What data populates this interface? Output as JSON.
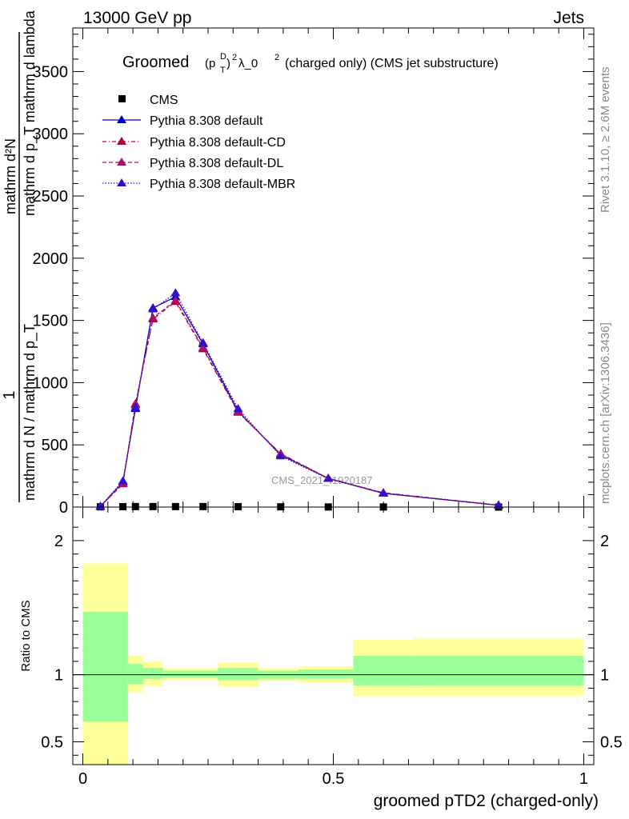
{
  "header": {
    "left": "13000 GeV pp",
    "right": "Jets"
  },
  "side_labels": {
    "rivet": "Rivet 3.1.10, ≥ 2.6M events",
    "mcplots": "mcplots.cern.ch [arXiv:1306.3436]"
  },
  "watermark": "CMS_2021_I1920187",
  "chart_data": [
    {
      "type": "line",
      "title": "Groomed (p_T^D)^2 λ_0^2  (charged only) (CMS jet substructure)",
      "title_parts": {
        "main": "Groomed",
        "sup_d": "D",
        "sub_t": "T",
        "rest": "λ_0",
        "tail": "(charged only) (CMS jet substructure)"
      },
      "ylabel_lines": [
        "1",
        "mathrm d N / mathrm d p_T mathrm d p_T mathrm d lambda",
        "mathrm d^2N"
      ],
      "ylabel_numerator": "mathrm d²N",
      "ylabel_denominator": "mathrm d p_T mathrm d lambda",
      "ylabel_prefix_num": "1",
      "ylabel_prefix_den": "mathrm d N / mathrm d p_T",
      "xlim": [
        -0.02,
        1.02
      ],
      "ylim": [
        0,
        3850
      ],
      "yticks": [
        0,
        500,
        1000,
        1500,
        2000,
        2500,
        3000,
        3500
      ],
      "ytick_labels": [
        "0",
        "500",
        "1000",
        "1500",
        "2000",
        "2500",
        "3000",
        "3500"
      ],
      "legend_position": "top-left",
      "x": [
        0.035,
        0.08,
        0.105,
        0.14,
        0.185,
        0.24,
        0.31,
        0.395,
        0.49,
        0.6,
        0.83
      ],
      "series": [
        {
          "name": "CMS",
          "marker": "square",
          "color": "#000000",
          "line": "none",
          "values": [
            2,
            3,
            4,
            4,
            4,
            4,
            3,
            2,
            1,
            1,
            0
          ]
        },
        {
          "name": "Pythia 8.308 default",
          "marker": "triangle",
          "color": "#0000cc",
          "line": "solid",
          "values": [
            5,
            200,
            790,
            1600,
            1690,
            1310,
            770,
            420,
            230,
            110,
            15
          ]
        },
        {
          "name": "Pythia 8.308 default-CD",
          "marker": "triangle",
          "color": "#b00040",
          "line": "dashdot",
          "values": [
            5,
            190,
            830,
            1510,
            1650,
            1270,
            760,
            430,
            230,
            115,
            15
          ]
        },
        {
          "name": "Pythia 8.308 default-DL",
          "marker": "triangle",
          "color": "#aa1060",
          "line": "dashed",
          "values": [
            5,
            185,
            820,
            1520,
            1660,
            1280,
            765,
            425,
            232,
            113,
            15
          ]
        },
        {
          "name": "Pythia 8.308 default-MBR",
          "marker": "triangle",
          "color": "#3311cc",
          "line": "dotted",
          "values": [
            5,
            210,
            800,
            1590,
            1720,
            1320,
            790,
            410,
            228,
            112,
            14
          ]
        }
      ]
    },
    {
      "type": "area",
      "ylabel": "Ratio to CMS",
      "xlabel": "groomed pTD2 (charged-only)",
      "xlim": [
        -0.02,
        1.02
      ],
      "ylim": [
        0.33,
        2.25
      ],
      "xticks": [
        0,
        0.5,
        1
      ],
      "xtick_labels": [
        "0",
        "0.5",
        "1"
      ],
      "yticks": [
        0.5,
        1,
        2
      ],
      "ytick_labels": [
        "0.5",
        "1",
        "2"
      ],
      "reference_line": 1,
      "bins": [
        {
          "x0": 0.0,
          "x1": 0.09,
          "inner": [
            0.65,
            1.47
          ],
          "outer": [
            0.33,
            1.83
          ]
        },
        {
          "x0": 0.09,
          "x1": 0.12,
          "inner": [
            0.93,
            1.08
          ],
          "outer": [
            0.87,
            1.14
          ]
        },
        {
          "x0": 0.12,
          "x1": 0.16,
          "inner": [
            0.97,
            1.05
          ],
          "outer": [
            0.92,
            1.1
          ]
        },
        {
          "x0": 0.16,
          "x1": 0.27,
          "inner": [
            0.98,
            1.03
          ],
          "outer": [
            0.96,
            1.05
          ]
        },
        {
          "x0": 0.27,
          "x1": 0.35,
          "inner": [
            0.96,
            1.05
          ],
          "outer": [
            0.91,
            1.09
          ]
        },
        {
          "x0": 0.35,
          "x1": 0.43,
          "inner": [
            0.97,
            1.03
          ],
          "outer": [
            0.95,
            1.05
          ]
        },
        {
          "x0": 0.43,
          "x1": 0.54,
          "inner": [
            0.97,
            1.04
          ],
          "outer": [
            0.94,
            1.06
          ]
        },
        {
          "x0": 0.54,
          "x1": 0.66,
          "inner": [
            0.92,
            1.14
          ],
          "outer": [
            0.84,
            1.26
          ]
        },
        {
          "x0": 0.66,
          "x1": 1.0,
          "inner": [
            0.92,
            1.14
          ],
          "outer": [
            0.84,
            1.27
          ]
        }
      ]
    }
  ]
}
